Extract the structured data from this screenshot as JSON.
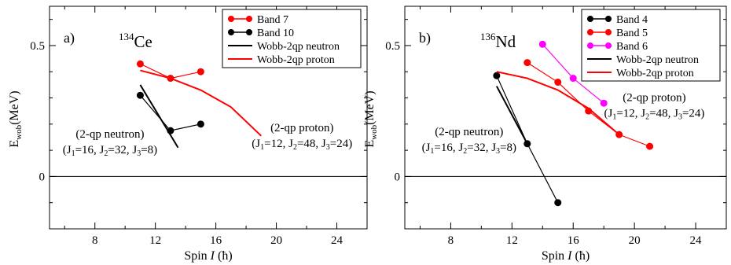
{
  "chart_data": [
    {
      "type": "line",
      "panel_label": "a)",
      "nucleus": {
        "mass": "134",
        "symbol": "Ce"
      },
      "xlabel": {
        "prefix": "Spin ",
        "symbol": "I",
        "unit": " (ħ)"
      },
      "ylabel": {
        "base": "E",
        "sub": "wob",
        "unit": "(MeV)"
      },
      "xlim": [
        5,
        26
      ],
      "ylim": [
        -0.2,
        0.65
      ],
      "xticks": [
        8,
        12,
        16,
        20,
        24
      ],
      "yticks": [
        0,
        0.5
      ],
      "ytick_labels": [
        "0",
        "0.5"
      ],
      "zero_line": true,
      "legend_position": "top-right",
      "series": [
        {
          "name": "Band 7",
          "color": "#ff0000",
          "style": "marker-line",
          "x": [
            11,
            13,
            15
          ],
          "y": [
            0.43,
            0.375,
            0.4
          ]
        },
        {
          "name": "Band 10",
          "color": "#000000",
          "style": "marker-line",
          "x": [
            11,
            13,
            15
          ],
          "y": [
            0.31,
            0.175,
            0.2
          ]
        },
        {
          "name": "Wobb-2qp neutron",
          "color": "#000000",
          "style": "line",
          "x": [
            11,
            13.5
          ],
          "y": [
            0.35,
            0.11
          ]
        },
        {
          "name": "Wobb-2qp proton",
          "color": "#ff0000",
          "style": "line",
          "x": [
            11,
            13,
            15,
            17,
            19
          ],
          "y": [
            0.405,
            0.375,
            0.33,
            0.265,
            0.155
          ]
        }
      ],
      "annotations": [
        {
          "title": "(2-qp neutron)",
          "params": [
            {
              "sub": "1",
              "value": "16"
            },
            {
              "sub": "2",
              "value": "32"
            },
            {
              "sub": "3",
              "value": "8"
            }
          ],
          "x": 9.0,
          "y": 0.13
        },
        {
          "title": "(2-qp proton)",
          "params": [
            {
              "sub": "1",
              "value": "12"
            },
            {
              "sub": "2",
              "value": "48"
            },
            {
              "sub": "3",
              "value": "24"
            }
          ],
          "x": 21.7,
          "y": 0.155
        }
      ]
    },
    {
      "type": "line",
      "panel_label": "b)",
      "nucleus": {
        "mass": "136",
        "symbol": "Nd"
      },
      "xlabel": {
        "prefix": "Spin ",
        "symbol": "I",
        "unit": " (ħ)"
      },
      "ylabel": {
        "base": "E",
        "sub": "wob",
        "unit": "(MeV)"
      },
      "xlim": [
        5,
        26
      ],
      "ylim": [
        -0.2,
        0.65
      ],
      "xticks": [
        8,
        12,
        16,
        20,
        24
      ],
      "yticks": [
        0,
        0.5
      ],
      "ytick_labels": [
        "0",
        "0.5"
      ],
      "zero_line": true,
      "legend_position": "top-right",
      "series": [
        {
          "name": "Band 4",
          "color": "#000000",
          "style": "marker-line",
          "x": [
            11,
            13,
            15
          ],
          "y": [
            0.385,
            0.125,
            -0.1
          ]
        },
        {
          "name": "Band 5",
          "color": "#ff0000",
          "style": "marker-line",
          "x": [
            13,
            15,
            17,
            19,
            21
          ],
          "y": [
            0.435,
            0.36,
            0.25,
            0.16,
            0.115
          ]
        },
        {
          "name": "Band 6",
          "color": "#ff00ff",
          "style": "marker-line",
          "x": [
            14,
            16,
            18
          ],
          "y": [
            0.505,
            0.375,
            0.28
          ]
        },
        {
          "name": "Wobb-2qp neutron",
          "color": "#000000",
          "style": "line",
          "x": [
            11,
            13
          ],
          "y": [
            0.345,
            0.125
          ]
        },
        {
          "name": "Wobb-2qp proton",
          "color": "#ff0000",
          "style": "line",
          "x": [
            11,
            13,
            15,
            17,
            19
          ],
          "y": [
            0.4,
            0.375,
            0.33,
            0.26,
            0.16
          ]
        }
      ],
      "annotations": [
        {
          "title": "(2-qp neutron)",
          "params": [
            {
              "sub": "1",
              "value": "16"
            },
            {
              "sub": "2",
              "value": "32"
            },
            {
              "sub": "3",
              "value": "8"
            }
          ],
          "x": 9.2,
          "y": 0.14
        },
        {
          "title": "(2-qp proton)",
          "params": [
            {
              "sub": "1",
              "value": "12"
            },
            {
              "sub": "2",
              "value": "48"
            },
            {
              "sub": "3",
              "value": "24"
            }
          ],
          "x": 21.3,
          "y": 0.27
        }
      ]
    }
  ]
}
